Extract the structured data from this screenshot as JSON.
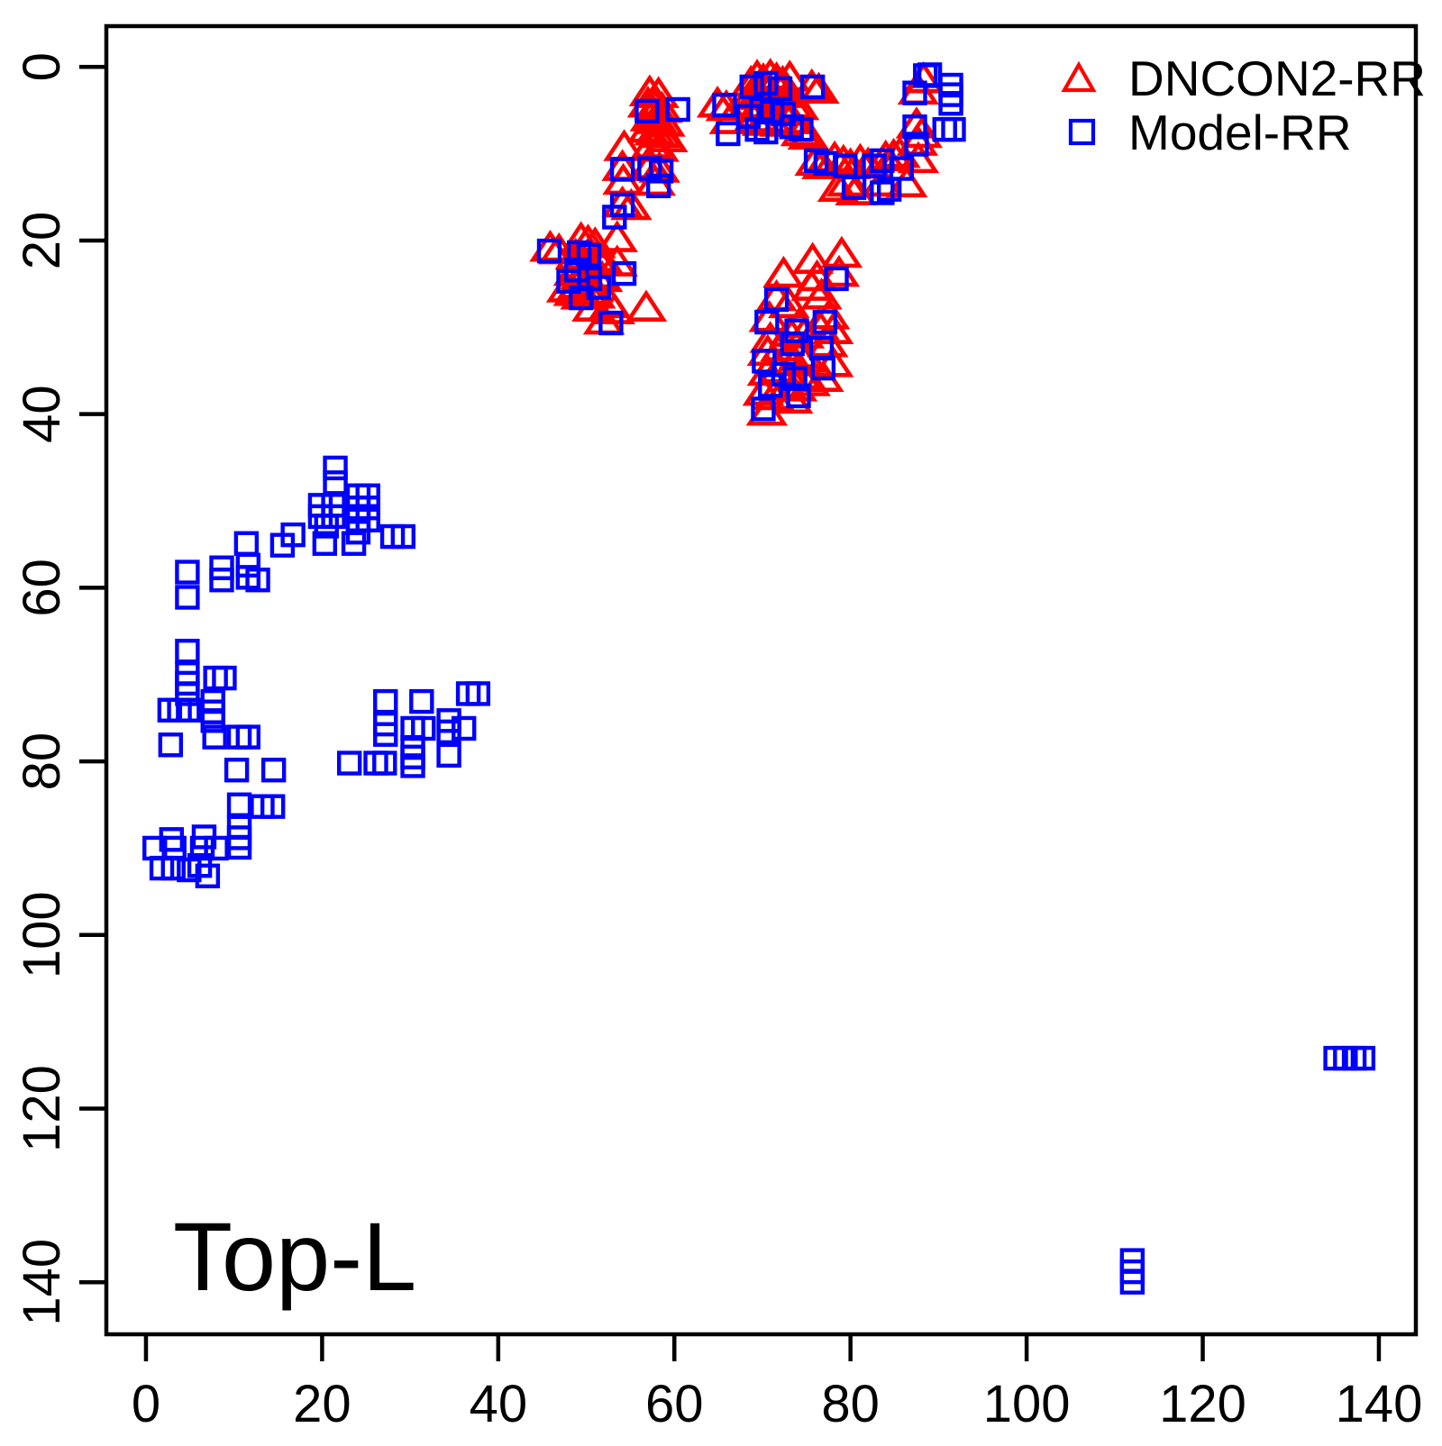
{
  "chart_data": {
    "type": "scatter",
    "title": "",
    "annotation": "Top-L",
    "xlabel": "",
    "ylabel": "",
    "grid": false,
    "axis_color": "#000000",
    "background_color": "#ffffff",
    "xlim": [
      -4.5,
      144.2
    ],
    "ylim": [
      146,
      -4.7
    ],
    "y_axis_reversed": true,
    "x_ticks": [
      0,
      20,
      40,
      60,
      80,
      100,
      120,
      140
    ],
    "y_ticks": [
      0,
      20,
      40,
      60,
      80,
      100,
      120,
      140
    ],
    "legend_position": "top-right",
    "series": [
      {
        "name": "DNCON2-RR",
        "marker": "triangle",
        "color": "#FF0000",
        "points": [
          [
            57.2,
            3.0
          ],
          [
            58.2,
            3.2
          ],
          [
            57.0,
            4.3
          ],
          [
            57.8,
            4.6
          ],
          [
            58.6,
            4.9
          ],
          [
            57.3,
            5.9
          ],
          [
            58.1,
            6.2
          ],
          [
            58.9,
            6.5
          ],
          [
            57.0,
            7.2
          ],
          [
            57.8,
            7.5
          ],
          [
            58.6,
            7.8
          ],
          [
            59.2,
            8.3
          ],
          [
            54.3,
            9.3
          ],
          [
            57.4,
            9.0
          ],
          [
            58.2,
            9.4
          ],
          [
            54.1,
            11.6
          ],
          [
            57.3,
            11.4
          ],
          [
            58.3,
            11.8
          ],
          [
            54.2,
            13.2
          ],
          [
            57.8,
            13.3
          ],
          [
            54.1,
            15.8
          ],
          [
            55.1,
            16.1
          ],
          [
            64.9,
            4.3
          ],
          [
            65.9,
            4.7
          ],
          [
            68.7,
            1.9
          ],
          [
            69.4,
            1.2
          ],
          [
            70.1,
            1.6
          ],
          [
            70.9,
            1.1
          ],
          [
            71.6,
            1.5
          ],
          [
            72.3,
            1.9
          ],
          [
            73.1,
            1.3
          ],
          [
            68.9,
            3.0
          ],
          [
            69.7,
            3.4
          ],
          [
            70.5,
            2.9
          ],
          [
            71.3,
            3.3
          ],
          [
            72.1,
            2.8
          ],
          [
            72.9,
            3.2
          ],
          [
            68.6,
            4.4
          ],
          [
            69.4,
            4.8
          ],
          [
            70.2,
            4.4
          ],
          [
            71.0,
            4.9
          ],
          [
            71.8,
            4.5
          ],
          [
            72.6,
            4.9
          ],
          [
            73.4,
            4.4
          ],
          [
            75.6,
            2.3
          ],
          [
            76.4,
            2.7
          ],
          [
            74.1,
            4.6
          ],
          [
            66.3,
            6.2
          ],
          [
            69.0,
            6.0
          ],
          [
            70.0,
            6.4
          ],
          [
            71.0,
            6.1
          ],
          [
            72.0,
            6.5
          ],
          [
            73.0,
            6.2
          ],
          [
            74.4,
            7.6
          ],
          [
            75.2,
            8.0
          ],
          [
            76.0,
            11.0
          ],
          [
            76.8,
            11.4
          ],
          [
            78.2,
            10.6
          ],
          [
            79.2,
            11.0
          ],
          [
            80.0,
            11.4
          ],
          [
            81.1,
            10.9
          ],
          [
            82.0,
            11.3
          ],
          [
            84.0,
            10.5
          ],
          [
            84.9,
            10.3
          ],
          [
            85.6,
            10.1
          ],
          [
            79.6,
            13.4
          ],
          [
            80.6,
            14.4
          ],
          [
            83.6,
            13.4
          ],
          [
            86.4,
            13.5
          ],
          [
            78.6,
            14.0
          ],
          [
            87.7,
            10.7
          ],
          [
            87.7,
            2.8
          ],
          [
            88.3,
            1.5
          ],
          [
            87.5,
            6.7
          ],
          [
            88.1,
            7.8
          ],
          [
            87.6,
            8.7
          ],
          [
            45.9,
            20.9
          ],
          [
            46.9,
            21.2
          ],
          [
            49.4,
            19.9
          ],
          [
            50.2,
            20.2
          ],
          [
            51.0,
            20.5
          ],
          [
            53.5,
            19.8
          ],
          [
            48.8,
            21.8
          ],
          [
            49.6,
            22.2
          ],
          [
            50.4,
            22.6
          ],
          [
            51.2,
            22.1
          ],
          [
            52.0,
            22.5
          ],
          [
            53.5,
            22.6
          ],
          [
            48.6,
            23.7
          ],
          [
            49.4,
            24.1
          ],
          [
            50.2,
            24.5
          ],
          [
            51.0,
            24.0
          ],
          [
            51.8,
            24.4
          ],
          [
            47.8,
            25.6
          ],
          [
            48.6,
            26.0
          ],
          [
            49.4,
            26.4
          ],
          [
            50.2,
            25.9
          ],
          [
            51.0,
            26.3
          ],
          [
            52.7,
            27.4
          ],
          [
            53.2,
            28.1
          ],
          [
            56.8,
            27.8
          ],
          [
            49.0,
            25.2
          ],
          [
            50.7,
            27.8
          ],
          [
            52.0,
            29.3
          ],
          [
            75.7,
            22.3
          ],
          [
            79.0,
            21.6
          ],
          [
            78.7,
            23.8
          ],
          [
            76.2,
            24.3
          ],
          [
            72.4,
            23.9
          ],
          [
            75.6,
            25.4
          ],
          [
            76.7,
            26.4
          ],
          [
            73.0,
            27.4
          ],
          [
            71.6,
            26.6
          ],
          [
            77.6,
            28.7
          ],
          [
            74.2,
            29.7
          ],
          [
            70.8,
            29.0
          ],
          [
            76.4,
            29.9
          ],
          [
            73.1,
            30.7
          ],
          [
            78.0,
            30.4
          ],
          [
            74.7,
            30.9
          ],
          [
            70.9,
            31.4
          ],
          [
            77.4,
            31.9
          ],
          [
            72.1,
            32.4
          ],
          [
            75.1,
            33.7
          ],
          [
            74.2,
            33.2
          ],
          [
            70.6,
            32.9
          ],
          [
            78.0,
            34.2
          ],
          [
            73.7,
            34.1
          ],
          [
            70.6,
            35.2
          ],
          [
            74.4,
            35.6
          ],
          [
            75.4,
            36.4
          ],
          [
            71.9,
            34.9
          ],
          [
            76.9,
            35.9
          ],
          [
            70.1,
            37.5
          ],
          [
            73.9,
            37.0
          ],
          [
            73.4,
            38.4
          ],
          [
            70.5,
            39.8
          ],
          [
            72.8,
            36.8
          ],
          [
            71.3,
            38.0
          ]
        ]
      },
      {
        "name": "Model-RR",
        "marker": "square",
        "color": "#0000FF",
        "points": [
          [
            56.9,
            5.1
          ],
          [
            60.4,
            4.9
          ],
          [
            54.1,
            11.8
          ],
          [
            57.2,
            11.7
          ],
          [
            58.5,
            12.0
          ],
          [
            54.1,
            15.9
          ],
          [
            58.2,
            13.7
          ],
          [
            53.2,
            17.3
          ],
          [
            65.7,
            4.4
          ],
          [
            68.8,
            2.3
          ],
          [
            70.4,
            1.9
          ],
          [
            72.0,
            2.5
          ],
          [
            75.7,
            2.3
          ],
          [
            69.9,
            4.9
          ],
          [
            71.1,
            5.2
          ],
          [
            72.4,
            5.4
          ],
          [
            68.4,
            5.7
          ],
          [
            69.4,
            7.2
          ],
          [
            70.4,
            7.5
          ],
          [
            73.3,
            6.9
          ],
          [
            74.4,
            7.2
          ],
          [
            66.1,
            7.7
          ],
          [
            76.1,
            10.8
          ],
          [
            77.2,
            11.1
          ],
          [
            79.4,
            11.4
          ],
          [
            80.4,
            13.9
          ],
          [
            82.7,
            11.4
          ],
          [
            84.4,
            14.1
          ],
          [
            85.8,
            11.7
          ],
          [
            83.6,
            10.8
          ],
          [
            83.6,
            14.5
          ],
          [
            89.0,
            0.9
          ],
          [
            88.5,
            1.0
          ],
          [
            87.3,
            3.0
          ],
          [
            91.4,
            2.1
          ],
          [
            91.4,
            3.2
          ],
          [
            91.4,
            4.2
          ],
          [
            87.3,
            6.9
          ],
          [
            90.7,
            7.2
          ],
          [
            91.7,
            7.2
          ],
          [
            87.5,
            8.9
          ],
          [
            45.8,
            21.2
          ],
          [
            49.2,
            21.4
          ],
          [
            50.3,
            21.7
          ],
          [
            54.3,
            23.8
          ],
          [
            49.4,
            26.6
          ],
          [
            50.4,
            24.4
          ],
          [
            48.9,
            23.4
          ],
          [
            51.4,
            25.4
          ],
          [
            52.8,
            29.5
          ],
          [
            48.0,
            24.7
          ],
          [
            71.6,
            26.8
          ],
          [
            70.5,
            29.4
          ],
          [
            73.9,
            30.4
          ],
          [
            77.1,
            29.4
          ],
          [
            73.4,
            31.9
          ],
          [
            76.7,
            32.4
          ],
          [
            70.2,
            33.9
          ],
          [
            73.7,
            35.9
          ],
          [
            76.9,
            34.7
          ],
          [
            70.1,
            39.4
          ],
          [
            74.1,
            37.9
          ],
          [
            70.9,
            36.7
          ],
          [
            78.4,
            24.4
          ],
          [
            72.4,
            35.4
          ],
          [
            21.5,
            46.2
          ],
          [
            21.5,
            47.9
          ],
          [
            19.8,
            50.5
          ],
          [
            21.3,
            50.5
          ],
          [
            24.1,
            49.4
          ],
          [
            25.2,
            49.4
          ],
          [
            24.1,
            50.8
          ],
          [
            25.2,
            50.8
          ],
          [
            19.8,
            51.8
          ],
          [
            21.3,
            51.8
          ],
          [
            24.1,
            52.2
          ],
          [
            25.2,
            52.2
          ],
          [
            20.5,
            52.9
          ],
          [
            24.1,
            53.6
          ],
          [
            16.7,
            53.9
          ],
          [
            28.0,
            54.1
          ],
          [
            29.2,
            54.1
          ],
          [
            20.3,
            54.9
          ],
          [
            23.6,
            54.9
          ],
          [
            11.4,
            54.9
          ],
          [
            15.5,
            55.1
          ],
          [
            4.7,
            58.2
          ],
          [
            4.7,
            61.1
          ],
          [
            8.6,
            57.7
          ],
          [
            8.6,
            59.1
          ],
          [
            11.6,
            57.4
          ],
          [
            11.6,
            58.8
          ],
          [
            12.7,
            59.1
          ],
          [
            4.7,
            67.3
          ],
          [
            4.7,
            69.9
          ],
          [
            4.7,
            71.0
          ],
          [
            4.7,
            72.2
          ],
          [
            7.9,
            70.4
          ],
          [
            8.9,
            70.4
          ],
          [
            2.7,
            74.1
          ],
          [
            3.8,
            74.1
          ],
          [
            4.8,
            74.1
          ],
          [
            7.6,
            73.1
          ],
          [
            7.6,
            74.3
          ],
          [
            7.6,
            75.3
          ],
          [
            7.8,
            77.2
          ],
          [
            10.6,
            77.2
          ],
          [
            11.6,
            77.2
          ],
          [
            2.8,
            78.1
          ],
          [
            27.2,
            73.1
          ],
          [
            31.3,
            73.1
          ],
          [
            36.6,
            72.2
          ],
          [
            37.7,
            72.2
          ],
          [
            27.2,
            75.7
          ],
          [
            27.2,
            76.9
          ],
          [
            30.3,
            76.2
          ],
          [
            31.5,
            76.2
          ],
          [
            34.4,
            75.3
          ],
          [
            34.4,
            76.6
          ],
          [
            36.1,
            76.2
          ],
          [
            30.3,
            78.4
          ],
          [
            30.3,
            79.5
          ],
          [
            30.3,
            80.5
          ],
          [
            34.4,
            79.3
          ],
          [
            23.1,
            80.2
          ],
          [
            26.1,
            80.2
          ],
          [
            27.1,
            80.2
          ],
          [
            10.3,
            81.0
          ],
          [
            14.5,
            81.0
          ],
          [
            10.6,
            85.0
          ],
          [
            13.2,
            85.2
          ],
          [
            14.4,
            85.2
          ],
          [
            10.6,
            87.6
          ],
          [
            10.6,
            88.8
          ],
          [
            10.6,
            89.9
          ],
          [
            2.9,
            89.0
          ],
          [
            1.0,
            90.0
          ],
          [
            3.2,
            90.0
          ],
          [
            6.6,
            88.7
          ],
          [
            6.4,
            90.0
          ],
          [
            8.0,
            90.0
          ],
          [
            1.8,
            92.3
          ],
          [
            3.1,
            92.3
          ],
          [
            4.9,
            92.5
          ],
          [
            6.1,
            92.0
          ],
          [
            7.0,
            93.2
          ],
          [
            135.1,
            114.2
          ],
          [
            136.2,
            114.2
          ],
          [
            137.2,
            114.2
          ],
          [
            138.2,
            114.2
          ],
          [
            112.0,
            137.5
          ],
          [
            112.0,
            138.8
          ],
          [
            112.0,
            140.0
          ]
        ]
      }
    ]
  }
}
